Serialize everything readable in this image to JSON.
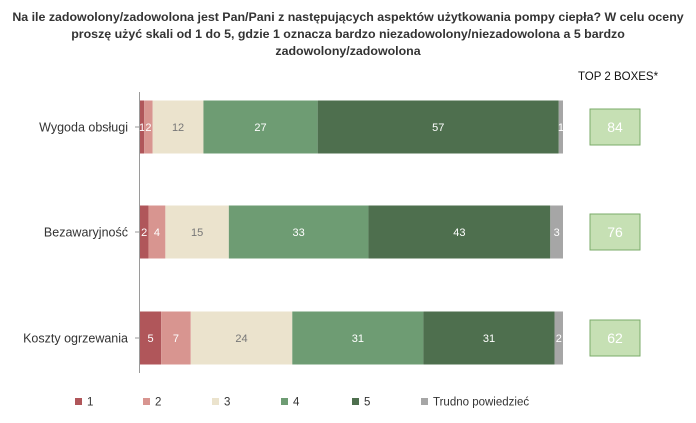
{
  "chart_data": {
    "type": "bar",
    "orientation": "horizontal",
    "stacked": "percent",
    "title_lines": [
      "Na ile zadowolony/zadowolona jest Pan/Pani z następujących aspektów użytkowania pompy ciepła? W celu oceny",
      "proszę użyć skali od 1 do 5, gdzie 1 oznacza bardzo niezadowolony/niezadowolona a 5 bardzo zadowolony/zadowolona"
    ],
    "categories": [
      "Wygoda obsługi",
      "Bezawaryjność",
      "Koszty ogrzewania"
    ],
    "series": [
      {
        "name": "1",
        "color": "#b0565a",
        "label_color": "#ffffff",
        "values": [
          1,
          2,
          5
        ]
      },
      {
        "name": "2",
        "color": "#d89590",
        "label_color": "#ffffff",
        "values": [
          2,
          4,
          7
        ]
      },
      {
        "name": "3",
        "color": "#ebe3cd",
        "label_color": "#777777",
        "values": [
          12,
          15,
          24
        ]
      },
      {
        "name": "4",
        "color": "#6e9c73",
        "label_color": "#ffffff",
        "values": [
          27,
          33,
          31
        ]
      },
      {
        "name": "5",
        "color": "#4e6f4e",
        "label_color": "#ffffff",
        "values": [
          57,
          43,
          31
        ]
      },
      {
        "name": "Trudno powiedzieć",
        "color": "#a6a6a6",
        "label_color": "#ffffff",
        "values": [
          1,
          3,
          2
        ]
      }
    ],
    "value_labels": [
      [
        "1",
        "2",
        "12",
        "27",
        "57",
        "1"
      ],
      [
        "2",
        "4",
        "15",
        "33",
        "43",
        "3"
      ],
      [
        "5",
        "7",
        "24",
        "31",
        "31",
        "2"
      ]
    ],
    "top2": {
      "header": "TOP 2 BOXES*",
      "values": [
        84,
        76,
        62
      ],
      "fill": "#c6e0b4",
      "border": "#7bab6a"
    },
    "legend_position": "bottom",
    "grid": false
  }
}
